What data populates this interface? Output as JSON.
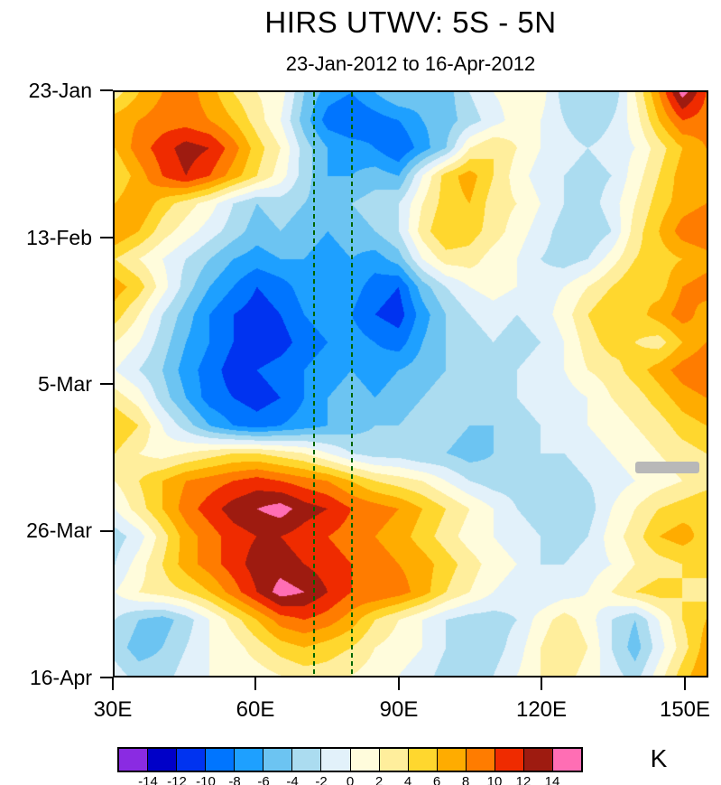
{
  "title": "HIRS UTWV: 5S - 5N",
  "subtitle": "23-Jan-2012 to 16-Apr-2012",
  "chart_data": {
    "type": "heatmap",
    "title": "HIRS UTWV: 5S - 5N",
    "subtitle": "23-Jan-2012 to 16-Apr-2012",
    "units": "K",
    "lon_range": [
      30,
      155
    ],
    "day_range": [
      0,
      84
    ],
    "date_range": [
      "23-Jan-2012",
      "16-Apr-2012"
    ],
    "xtick_lons": [
      30,
      60,
      90,
      120,
      150
    ],
    "xtick_labels": [
      "30E",
      "60E",
      "90E",
      "120E",
      "150E"
    ],
    "ytick_days": [
      0,
      21,
      42,
      63,
      84
    ],
    "ytick_labels": [
      "23-Jan",
      "13-Feb",
      "5-Mar",
      "26-Mar",
      "16-Apr"
    ],
    "contour_interval_K": 2,
    "levels": [
      -14,
      -12,
      -10,
      -8,
      -6,
      -4,
      -2,
      0,
      2,
      4,
      6,
      8,
      10,
      12,
      14
    ],
    "palette": [
      "#8A2BE2",
      "#0000C8",
      "#0033F0",
      "#0075FF",
      "#1EA0FF",
      "#6CC4F2",
      "#ABDCF0",
      "#E2F1FA",
      "#FFFCDC",
      "#FFEE9C",
      "#FFD72E",
      "#FFAC00",
      "#FF7C00",
      "#EF2B00",
      "#9E1B10",
      "#FF6EB4"
    ],
    "reference_lines_lon_deg": [
      72,
      80
    ],
    "reference_line_color": "#006400",
    "missing_data": {
      "lon_start": 140,
      "lon_end": 153.5,
      "day": 54,
      "color": "#b8b8b8"
    },
    "x_lons_deg_east": [
      30,
      35,
      40,
      45,
      50,
      55,
      60,
      65,
      70,
      75,
      80,
      85,
      90,
      95,
      100,
      105,
      110,
      115,
      120,
      125,
      130,
      135,
      140,
      145,
      150,
      155
    ],
    "y_days_since_23jan": [
      0,
      4,
      8,
      12,
      16,
      20,
      24,
      28,
      32,
      36,
      40,
      44,
      48,
      52,
      56,
      60,
      64,
      68,
      72,
      76,
      80,
      84
    ],
    "values_K": [
      [
        3,
        6,
        8,
        9,
        7,
        4,
        2,
        1,
        -4,
        -7,
        -8,
        -6,
        -4,
        -5,
        -5,
        -2,
        0,
        1,
        1,
        -3,
        -4,
        -4,
        2,
        8,
        15,
        10
      ],
      [
        7,
        8,
        9,
        9,
        8,
        6,
        3,
        0,
        -5,
        -9,
        -10,
        -9,
        -8,
        -6,
        -5,
        -3,
        -1,
        1,
        0,
        -2,
        -4,
        -2,
        1,
        6,
        10,
        9
      ],
      [
        6,
        9,
        11,
        13,
        12,
        9,
        5,
        2,
        -3,
        -6,
        -7,
        -8,
        -10,
        -7,
        -4,
        2,
        4,
        2,
        0,
        -1,
        -2,
        -1,
        0,
        3,
        6,
        8
      ],
      [
        4,
        7,
        10,
        12,
        10,
        7,
        4,
        1,
        -3,
        -6,
        -6,
        -5,
        -6,
        0,
        5,
        7,
        4,
        1,
        -1,
        -2,
        -3,
        -2,
        1,
        4,
        7,
        6
      ],
      [
        6,
        8,
        5,
        3,
        1,
        -2,
        -4,
        -3,
        -4,
        -5,
        -4,
        -3,
        -2,
        2,
        5,
        6,
        3,
        2,
        0,
        -2,
        -3,
        -1,
        2,
        5,
        7,
        8
      ],
      [
        8,
        6,
        3,
        1,
        -1,
        -3,
        -5,
        -4,
        -5,
        -6,
        -5,
        -4,
        -2,
        3,
        6,
        5,
        3,
        1,
        -1,
        -3,
        -4,
        -2,
        3,
        6,
        9,
        10
      ],
      [
        4,
        2,
        0,
        -2,
        -4,
        -6,
        -7,
        -6,
        -6,
        -7,
        -6,
        -7,
        -5,
        0,
        3,
        3,
        1,
        0,
        -2,
        -3,
        -2,
        1,
        4,
        5,
        6,
        7
      ],
      [
        7,
        5,
        1,
        -3,
        -6,
        -8,
        -10,
        -9,
        -7,
        -8,
        -7,
        -9,
        -10,
        -5,
        -2,
        0,
        1,
        0,
        -1,
        0,
        2,
        4,
        6,
        5,
        8,
        9
      ],
      [
        5,
        2,
        -2,
        -5,
        -8,
        -10,
        -11,
        -10,
        -8,
        -7,
        -8,
        -10,
        -11,
        -7,
        -4,
        -2,
        -1,
        -2,
        -1,
        1,
        4,
        6,
        5,
        7,
        9,
        7
      ],
      [
        2,
        0,
        -3,
        -6,
        -8,
        -10,
        -12,
        -11,
        -9,
        -8,
        -7,
        -8,
        -9,
        -6,
        -4,
        -3,
        -2,
        -3,
        -2,
        0,
        3,
        5,
        4,
        3,
        6,
        8
      ],
      [
        0,
        -2,
        -4,
        -7,
        -9,
        -11,
        -10,
        -9,
        -8,
        -7,
        -6,
        -7,
        -6,
        -5,
        -4,
        -3,
        -3,
        -2,
        -1,
        0,
        2,
        3,
        5,
        7,
        9,
        10
      ],
      [
        3,
        1,
        -3,
        -6,
        -9,
        -10,
        -11,
        -10,
        -8,
        -6,
        -5,
        -6,
        -5,
        -4,
        -3,
        -4,
        -3,
        -2,
        -1,
        -1,
        0,
        2,
        3,
        5,
        7,
        8
      ],
      [
        6,
        4,
        0,
        -3,
        -6,
        -8,
        -9,
        -8,
        -7,
        -6,
        -5,
        -4,
        -4,
        -3,
        -3,
        -4,
        -4,
        -3,
        -2,
        -1,
        0,
        1,
        2,
        3,
        5,
        6
      ],
      [
        4,
        2,
        1,
        2,
        3,
        4,
        4,
        3,
        2,
        0,
        -2,
        -3,
        -3,
        -4,
        -4,
        -5,
        -4,
        -3,
        -2,
        -2,
        -1,
        0,
        1,
        2,
        3,
        4
      ],
      [
        2,
        4,
        6,
        8,
        9,
        10,
        11,
        10,
        9,
        8,
        6,
        4,
        3,
        2,
        0,
        -2,
        -3,
        -3,
        -4,
        -3,
        -2,
        -1,
        0,
        1,
        2,
        3
      ],
      [
        0,
        3,
        6,
        9,
        11,
        13,
        14,
        15,
        13,
        12,
        10,
        9,
        8,
        6,
        4,
        2,
        0,
        -2,
        -3,
        -4,
        -3,
        0,
        2,
        4,
        5,
        6
      ],
      [
        -3,
        -1,
        3,
        7,
        9,
        11,
        12,
        12,
        11,
        10,
        9,
        8,
        7,
        5,
        3,
        1,
        0,
        -1,
        -2,
        -3,
        -2,
        1,
        3,
        6,
        7,
        5
      ],
      [
        -2,
        1,
        4,
        7,
        9,
        11,
        13,
        13,
        12,
        11,
        10,
        9,
        8,
        7,
        5,
        3,
        1,
        0,
        -2,
        -2,
        -1,
        0,
        2,
        3,
        4,
        5
      ],
      [
        0,
        2,
        3,
        4,
        6,
        9,
        12,
        15,
        14,
        12,
        10,
        10,
        9,
        7,
        4,
        2,
        0,
        -1,
        -2,
        -1,
        0,
        2,
        4,
        5,
        4,
        3
      ],
      [
        -2,
        -4,
        -5,
        -3,
        0,
        3,
        6,
        9,
        10,
        9,
        7,
        4,
        2,
        0,
        -2,
        -3,
        -3,
        -2,
        1,
        3,
        1,
        -2,
        -4,
        0,
        4,
        6
      ],
      [
        -3,
        -5,
        -4,
        -2,
        0,
        1,
        3,
        5,
        6,
        5,
        4,
        2,
        1,
        0,
        -2,
        -4,
        -3,
        -1,
        2,
        4,
        2,
        -2,
        -5,
        -1,
        3,
        7
      ],
      [
        -1,
        -3,
        -3,
        -1,
        0,
        1,
        1,
        2,
        3,
        3,
        2,
        1,
        0,
        -1,
        -3,
        -3,
        -2,
        0,
        2,
        3,
        1,
        -1,
        -3,
        1,
        5,
        8
      ]
    ]
  }
}
